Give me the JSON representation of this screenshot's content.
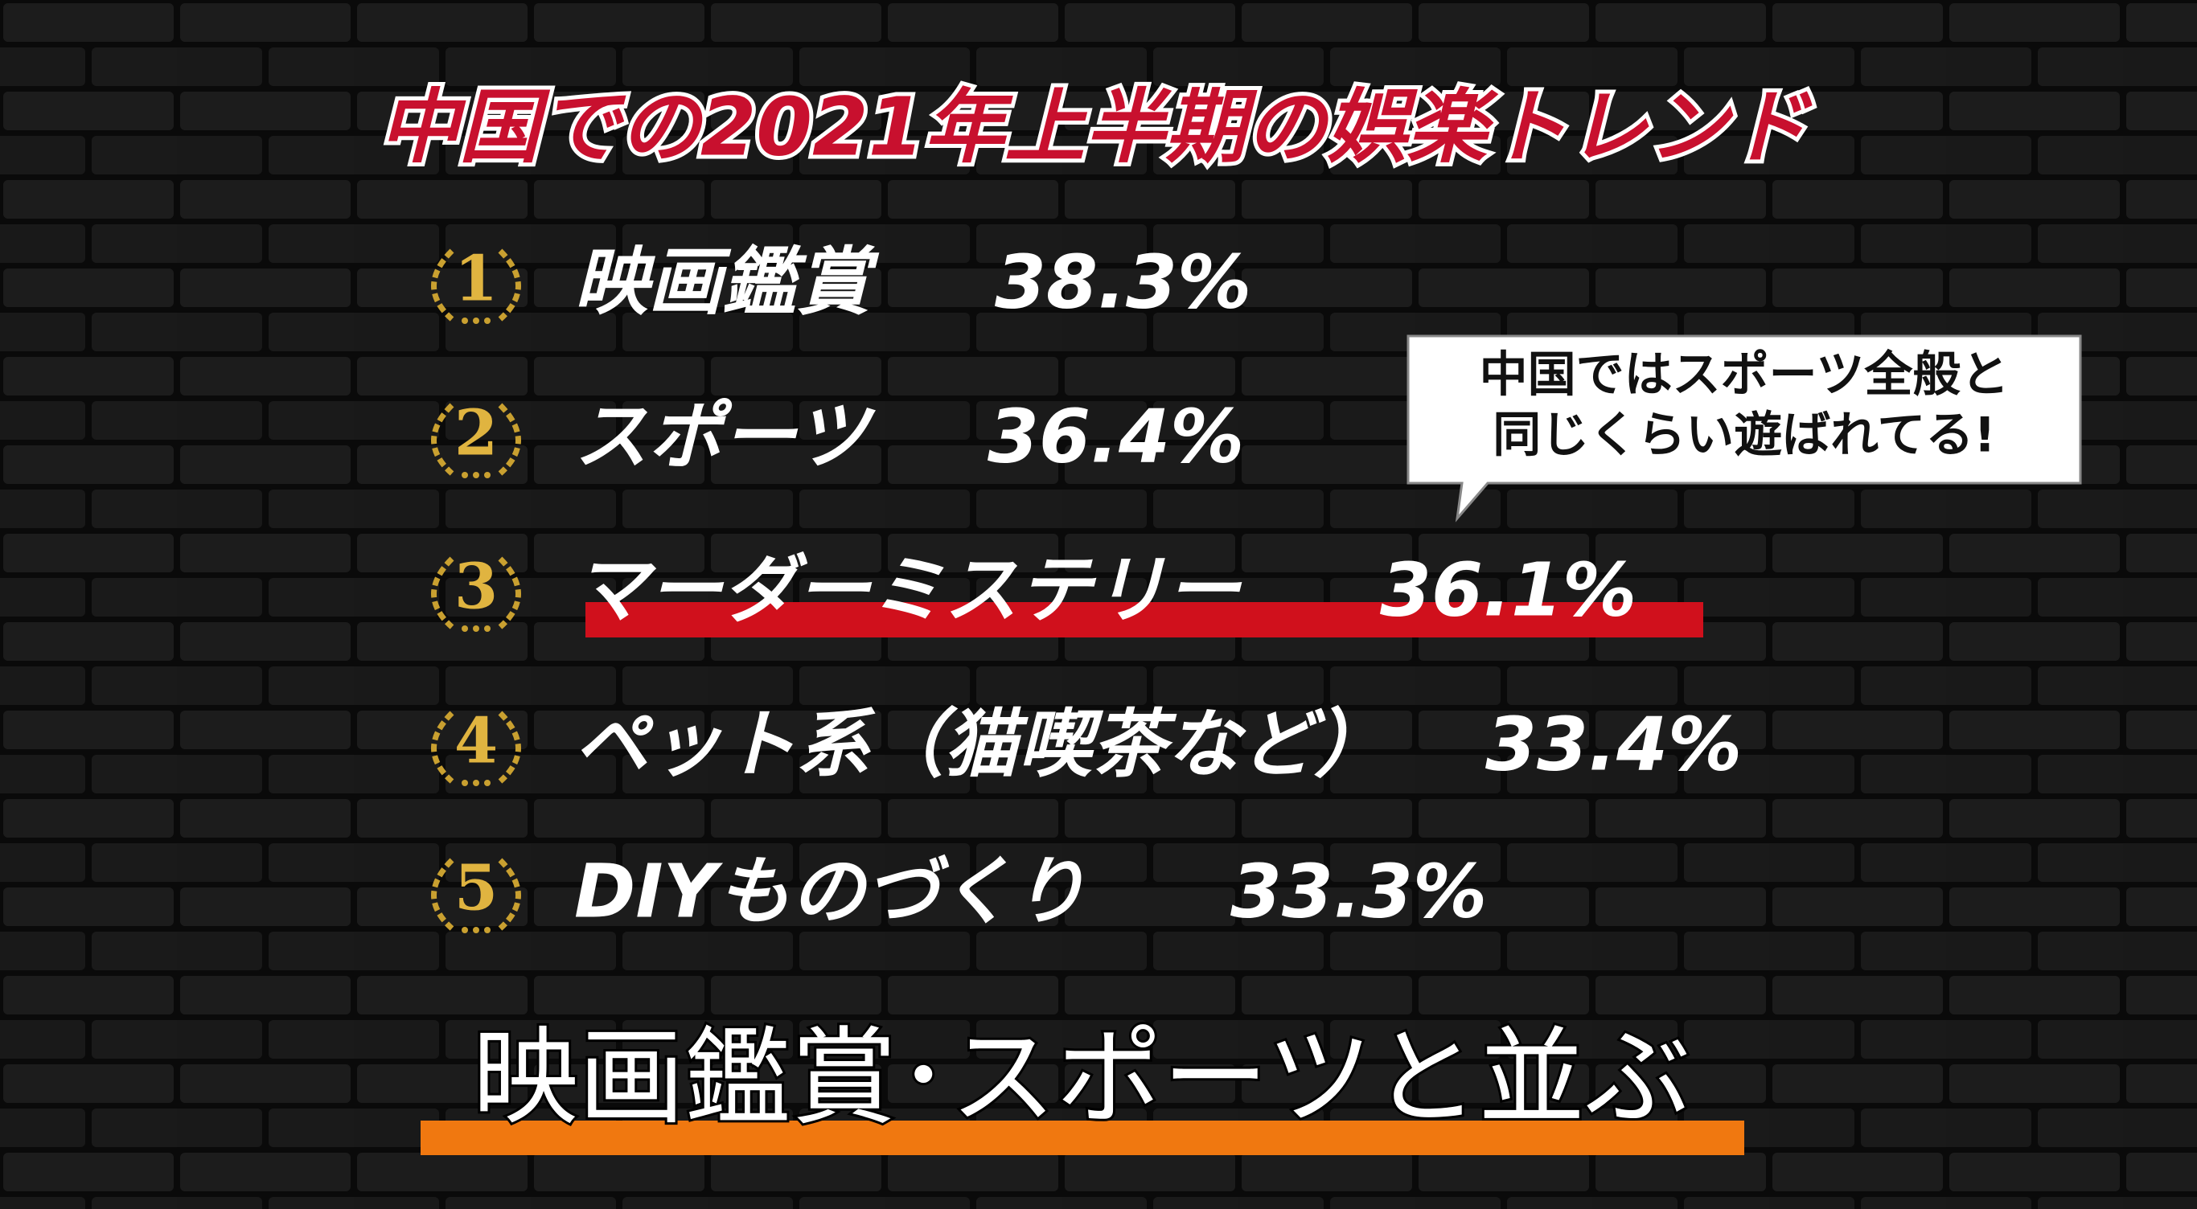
{
  "title": "中国での2021年上半期の娯楽トレンド",
  "ranking": [
    {
      "rank": "1",
      "label": "映画鑑賞",
      "value": "38.3%"
    },
    {
      "rank": "2",
      "label": "スポーツ",
      "value": "36.4%"
    },
    {
      "rank": "3",
      "label": "マーダーミステリー",
      "value": "36.1%"
    },
    {
      "rank": "4",
      "label": "ペット系（猫喫茶など）",
      "value": "33.4%"
    },
    {
      "rank": "5",
      "label": "DIYものづくり",
      "value": "33.3%"
    }
  ],
  "callout": {
    "lines": [
      "中国ではスポーツ全般と",
      "同じくらい遊ばれてる!"
    ]
  },
  "caption": "映画鑑賞･スポーツと並ぶ"
}
